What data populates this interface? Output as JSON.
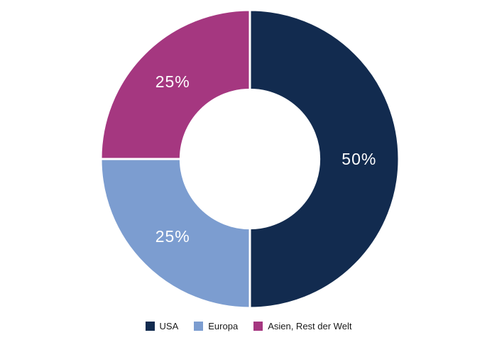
{
  "chart_data": {
    "type": "pie",
    "subtype": "donut",
    "categories": [
      "USA",
      "Europa",
      "Asien, Rest der Welt"
    ],
    "values": [
      50,
      25,
      25
    ],
    "labels": [
      "50%",
      "25%",
      "25%"
    ],
    "colors": [
      "#122B4F",
      "#7C9DD0",
      "#A53780"
    ],
    "title": "",
    "legend_position": "bottom",
    "start_angle_deg": 0,
    "direction": "clockwise",
    "inner_radius_ratio": 0.465,
    "label_color": "#FFFFFF",
    "background": "#FFFFFF"
  },
  "legend": {
    "items": [
      {
        "label": "USA",
        "color": "#122B4F"
      },
      {
        "label": "Europa",
        "color": "#7C9DD0"
      },
      {
        "label": "Asien, Rest der Welt",
        "color": "#A53780"
      }
    ]
  }
}
